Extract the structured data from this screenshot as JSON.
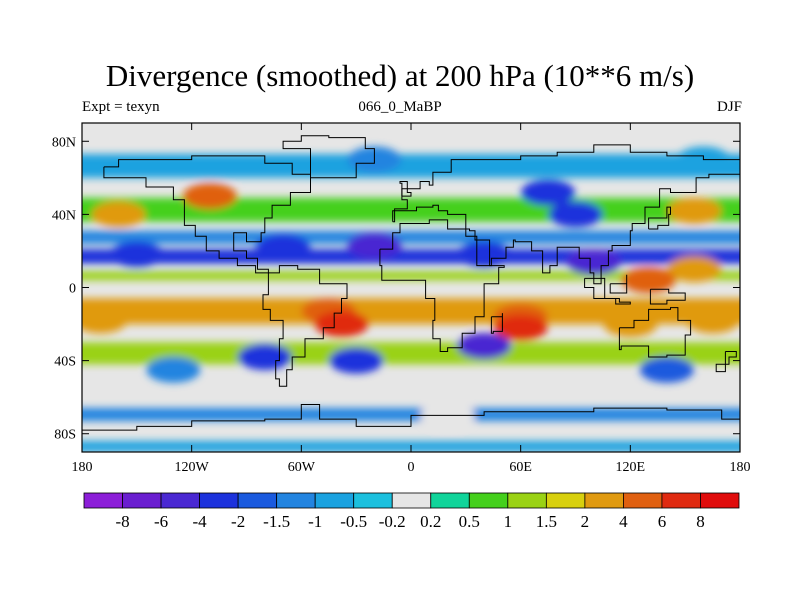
{
  "chart_data": {
    "type": "heatmap",
    "title": "Divergence (smoothed) at 200 hPa (10**6 m/s)",
    "left_string": "Expt = texyn",
    "center_string": "066_0_MaBP",
    "right_string": "DJF",
    "xlim": [
      -180,
      180
    ],
    "ylim": [
      -90,
      90
    ],
    "x_ticks": [
      {
        "value": -180,
        "label": "180"
      },
      {
        "value": -120,
        "label": "120W"
      },
      {
        "value": -60,
        "label": "60W"
      },
      {
        "value": 0,
        "label": "0"
      },
      {
        "value": 60,
        "label": "60E"
      },
      {
        "value": 120,
        "label": "120E"
      },
      {
        "value": 180,
        "label": "180"
      }
    ],
    "y_ticks": [
      {
        "value": 80,
        "label": "80N"
      },
      {
        "value": 40,
        "label": "40N"
      },
      {
        "value": 0,
        "label": "0"
      },
      {
        "value": -40,
        "label": "40S"
      },
      {
        "value": -80,
        "label": "80S"
      }
    ],
    "colorbar": {
      "labels": [
        "-8",
        "-6",
        "-4",
        "-2",
        "-1.5",
        "-1",
        "-0.5",
        "-0.2",
        "0.2",
        "0.5",
        "1",
        "1.5",
        "2",
        "4",
        "6",
        "8"
      ],
      "colors": [
        "#8c1ed8",
        "#6a1ed0",
        "#4a28d2",
        "#1c32dc",
        "#1a5ade",
        "#2284e0",
        "#1aa2e0",
        "#1cc0de",
        "#e6e6e6",
        "#10d49a",
        "#44d01c",
        "#9ad214",
        "#d8d00e",
        "#e09a10",
        "#e06010",
        "#e02a10",
        "#e00c0c"
      ]
    },
    "bands": [
      {
        "lat": [
          -90,
          -84
        ],
        "level": "-0.5"
      },
      {
        "lat": [
          -73,
          -66
        ],
        "level": "-1"
      },
      {
        "lat": [
          -42,
          -30
        ],
        "level": "1"
      },
      {
        "lat": [
          -20,
          -6
        ],
        "level": "2"
      },
      {
        "lat": [
          4,
          9
        ],
        "level": "1"
      },
      {
        "lat": [
          13,
          21
        ],
        "level": "-2"
      },
      {
        "lat": [
          24,
          31
        ],
        "level": "-1"
      },
      {
        "lat": [
          36,
          49
        ],
        "level": "0.5"
      },
      {
        "lat": [
          60,
          73
        ],
        "level": "-0.5"
      }
    ],
    "blobs": [
      {
        "lon": -110,
        "lat": 50,
        "level": "4"
      },
      {
        "lon": -160,
        "lat": 40,
        "level": "2"
      },
      {
        "lon": -150,
        "lat": 18,
        "level": "-2"
      },
      {
        "lon": -70,
        "lat": 22,
        "level": "-2"
      },
      {
        "lon": -20,
        "lat": 23,
        "level": "-4"
      },
      {
        "lon": 40,
        "lat": 18,
        "level": "-2"
      },
      {
        "lon": 90,
        "lat": 40,
        "level": "-2"
      },
      {
        "lon": 75,
        "lat": 52,
        "level": "-2"
      },
      {
        "lon": 100,
        "lat": 14,
        "level": "-4"
      },
      {
        "lon": 155,
        "lat": 42,
        "level": "2"
      },
      {
        "lon": 155,
        "lat": 10,
        "level": "2"
      },
      {
        "lon": 130,
        "lat": 4,
        "level": "4"
      },
      {
        "lon": -45,
        "lat": -13,
        "level": "4"
      },
      {
        "lon": -38,
        "lat": -20,
        "level": "6"
      },
      {
        "lon": 60,
        "lat": -16,
        "level": "4"
      },
      {
        "lon": 60,
        "lat": -22,
        "level": "6"
      },
      {
        "lon": 120,
        "lat": -20,
        "level": "2"
      },
      {
        "lon": 165,
        "lat": -18,
        "level": "2"
      },
      {
        "lon": -170,
        "lat": -18,
        "level": "2"
      },
      {
        "lon": 40,
        "lat": -32,
        "level": "-4"
      },
      {
        "lon": -30,
        "lat": -40,
        "level": "-2"
      },
      {
        "lon": -80,
        "lat": -38,
        "level": "-2"
      },
      {
        "lon": -130,
        "lat": -45,
        "level": "-1"
      },
      {
        "lon": 140,
        "lat": -45,
        "level": "-1.5"
      },
      {
        "lon": -20,
        "lat": 70,
        "level": "-1"
      },
      {
        "lon": 160,
        "lat": 70,
        "level": "-0.5"
      },
      {
        "lon": 20,
        "lat": -70,
        "level": "0.2"
      }
    ]
  }
}
